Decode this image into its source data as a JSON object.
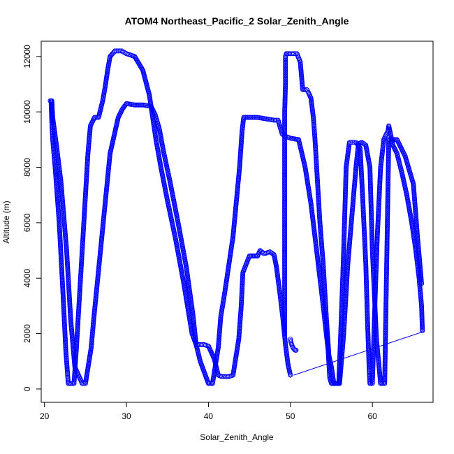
{
  "chart_data": {
    "type": "scatter",
    "title": "ATOM4 Northeast_Pacific_2 Solar_Zenith_Angle",
    "xlabel": "Solar_Zenith_Angle",
    "ylabel": "Altitude (m)",
    "xlim": [
      19.6,
      67.4
    ],
    "ylim": [
      -480,
      12550
    ],
    "x_ticks": [
      20,
      30,
      40,
      50,
      60
    ],
    "y_ticks": [
      0,
      2000,
      4000,
      6000,
      8000,
      10000,
      12000
    ],
    "grid": false,
    "legend": "none",
    "colors": {
      "points": "#0000ff",
      "axes": "#000000",
      "background": "#ffffff"
    },
    "series": [
      {
        "style": "points",
        "x": [
          20.7,
          20.8,
          20.9,
          21.0,
          21.3,
          21.8,
          22.3,
          22.6,
          22.8,
          22.9,
          23.2,
          23.6,
          23.9,
          24.2,
          24.6,
          25.0,
          25.3,
          25.6,
          26.1,
          26.6,
          27.1,
          27.4,
          27.7,
          28.0,
          28.6,
          29.0,
          29.4,
          29.7,
          30.0,
          31.0,
          32.0,
          32.8,
          33.2,
          33.6,
          34.2,
          35.0,
          36.0,
          37.0,
          38.0,
          38.5,
          39.0,
          39.5,
          40.0,
          40.7,
          41.2,
          41.6,
          42.0,
          42.5,
          43.0,
          43.7,
          44.0,
          44.2,
          45.0,
          46.0,
          46.3,
          46.7,
          47.0,
          47.5,
          48.0,
          48.3,
          48.7,
          49.1,
          49.4,
          49.7,
          50.0
        ],
        "y": [
          10400,
          10400,
          9600,
          9000,
          8000,
          6000,
          3200,
          1400,
          600,
          200,
          200,
          200,
          1500,
          3000,
          5000,
          7000,
          8500,
          9500,
          9800,
          9800,
          10400,
          10900,
          11500,
          12000,
          12200,
          12200,
          12200,
          12150,
          12100,
          12000,
          11500,
          10600,
          9800,
          9000,
          8000,
          6800,
          5400,
          3800,
          2000,
          1600,
          1600,
          1600,
          1550,
          1100,
          500,
          450,
          450,
          450,
          500,
          1800,
          3000,
          4200,
          4800,
          4800,
          5000,
          4900,
          4900,
          4950,
          4850,
          4400,
          3500,
          2500,
          1600,
          900,
          500
        ],
        "connect": false
      },
      {
        "style": "points",
        "x": [
          20.9,
          21.0,
          21.5,
          22.0,
          22.7,
          23.2,
          23.7,
          24.3,
          24.6,
          25.0,
          25.7,
          26.0,
          26.5,
          27.0,
          27.5,
          28.0,
          29.0,
          29.5,
          30.0,
          31.0,
          32.0,
          33.0,
          33.5,
          34.0,
          34.5,
          35.3,
          36.3,
          37.3,
          38.1,
          38.5,
          39.0,
          40.0,
          40.5,
          41.2,
          41.5,
          42.0,
          43.0,
          43.8,
          44.1,
          44.3,
          45.0,
          46.0,
          47.0,
          48.0,
          48.5,
          49.0,
          49.4,
          49.6,
          50.0,
          51.0,
          51.8,
          52.5,
          53.2,
          54.0,
          54.6,
          54.8,
          55.0,
          55.5,
          56.0,
          56.5,
          57.0,
          58.0,
          58.3,
          58.7,
          59.2,
          59.7,
          60.0,
          60.5,
          61.0,
          61.5,
          62.0,
          62.3,
          63.0,
          64.0,
          65.0,
          65.5,
          66.0
        ],
        "y": [
          10400,
          9800,
          8700,
          7500,
          5000,
          2500,
          800,
          400,
          200,
          200,
          1500,
          2500,
          4000,
          5500,
          7000,
          8500,
          9800,
          10100,
          10300,
          10250,
          10250,
          10200,
          9900,
          9400,
          8600,
          7500,
          6000,
          4400,
          2700,
          1600,
          1000,
          200,
          200,
          1500,
          2600,
          3500,
          5500,
          8000,
          9300,
          9800,
          9800,
          9800,
          9750,
          9700,
          9700,
          9200,
          9100,
          9100,
          9050,
          9000,
          8000,
          6700,
          5000,
          3000,
          1400,
          400,
          200,
          200,
          200,
          2000,
          4500,
          8000,
          8850,
          8900,
          8800,
          8000,
          5000,
          1800,
          200,
          200,
          9000,
          9000,
          9000,
          8400,
          7400,
          5500,
          3800
        ]
      },
      {
        "style": "points",
        "x": [
          49.3,
          49.3,
          49.3,
          49.3,
          49.3,
          49.4,
          49.4,
          49.5,
          49.6,
          49.6,
          49.9,
          50.4,
          50.8,
          51.2,
          51.5,
          51.8,
          52.0,
          52.2,
          52.5,
          52.8,
          53.0,
          53.2,
          53.4,
          53.6,
          54.0,
          54.4,
          54.7,
          55.0,
          55.3,
          55.6,
          55.9,
          56.2,
          56.5,
          56.8,
          57.2,
          57.6,
          58.0,
          58.5,
          58.8,
          59.2,
          59.4,
          59.6,
          59.7,
          59.8,
          60.0,
          60.3,
          60.6,
          61.0,
          61.4,
          61.7,
          61.9,
          62.0,
          62.5,
          63.0,
          63.6,
          64.2,
          64.8,
          65.3,
          65.7,
          66.0,
          66.1
        ],
        "y": [
          2000,
          4000,
          6000,
          8000,
          10000,
          11000,
          12000,
          12100,
          12100,
          12100,
          12100,
          12100,
          12100,
          11800,
          10800,
          10800,
          10800,
          10700,
          10500,
          9800,
          9000,
          8000,
          7000,
          6000,
          4500,
          2500,
          1200,
          800,
          200,
          200,
          200,
          2500,
          5000,
          8000,
          8900,
          8900,
          8900,
          8700,
          7000,
          4500,
          2500,
          800,
          200,
          200,
          200,
          3000,
          5500,
          8000,
          9000,
          9200,
          9300,
          9500,
          8800,
          8500,
          7800,
          7000,
          6000,
          5000,
          4000,
          3000,
          2100
        ]
      },
      {
        "style": "points",
        "x": [
          50.0,
          50.1,
          50.3,
          50.4,
          50.5,
          50.6,
          50.7
        ],
        "y": [
          1800,
          1650,
          1500,
          1450,
          1420,
          1400,
          1400
        ]
      },
      {
        "style": "line",
        "x": [
          50.4,
          66.0
        ],
        "y": [
          500,
          2050
        ]
      }
    ]
  }
}
